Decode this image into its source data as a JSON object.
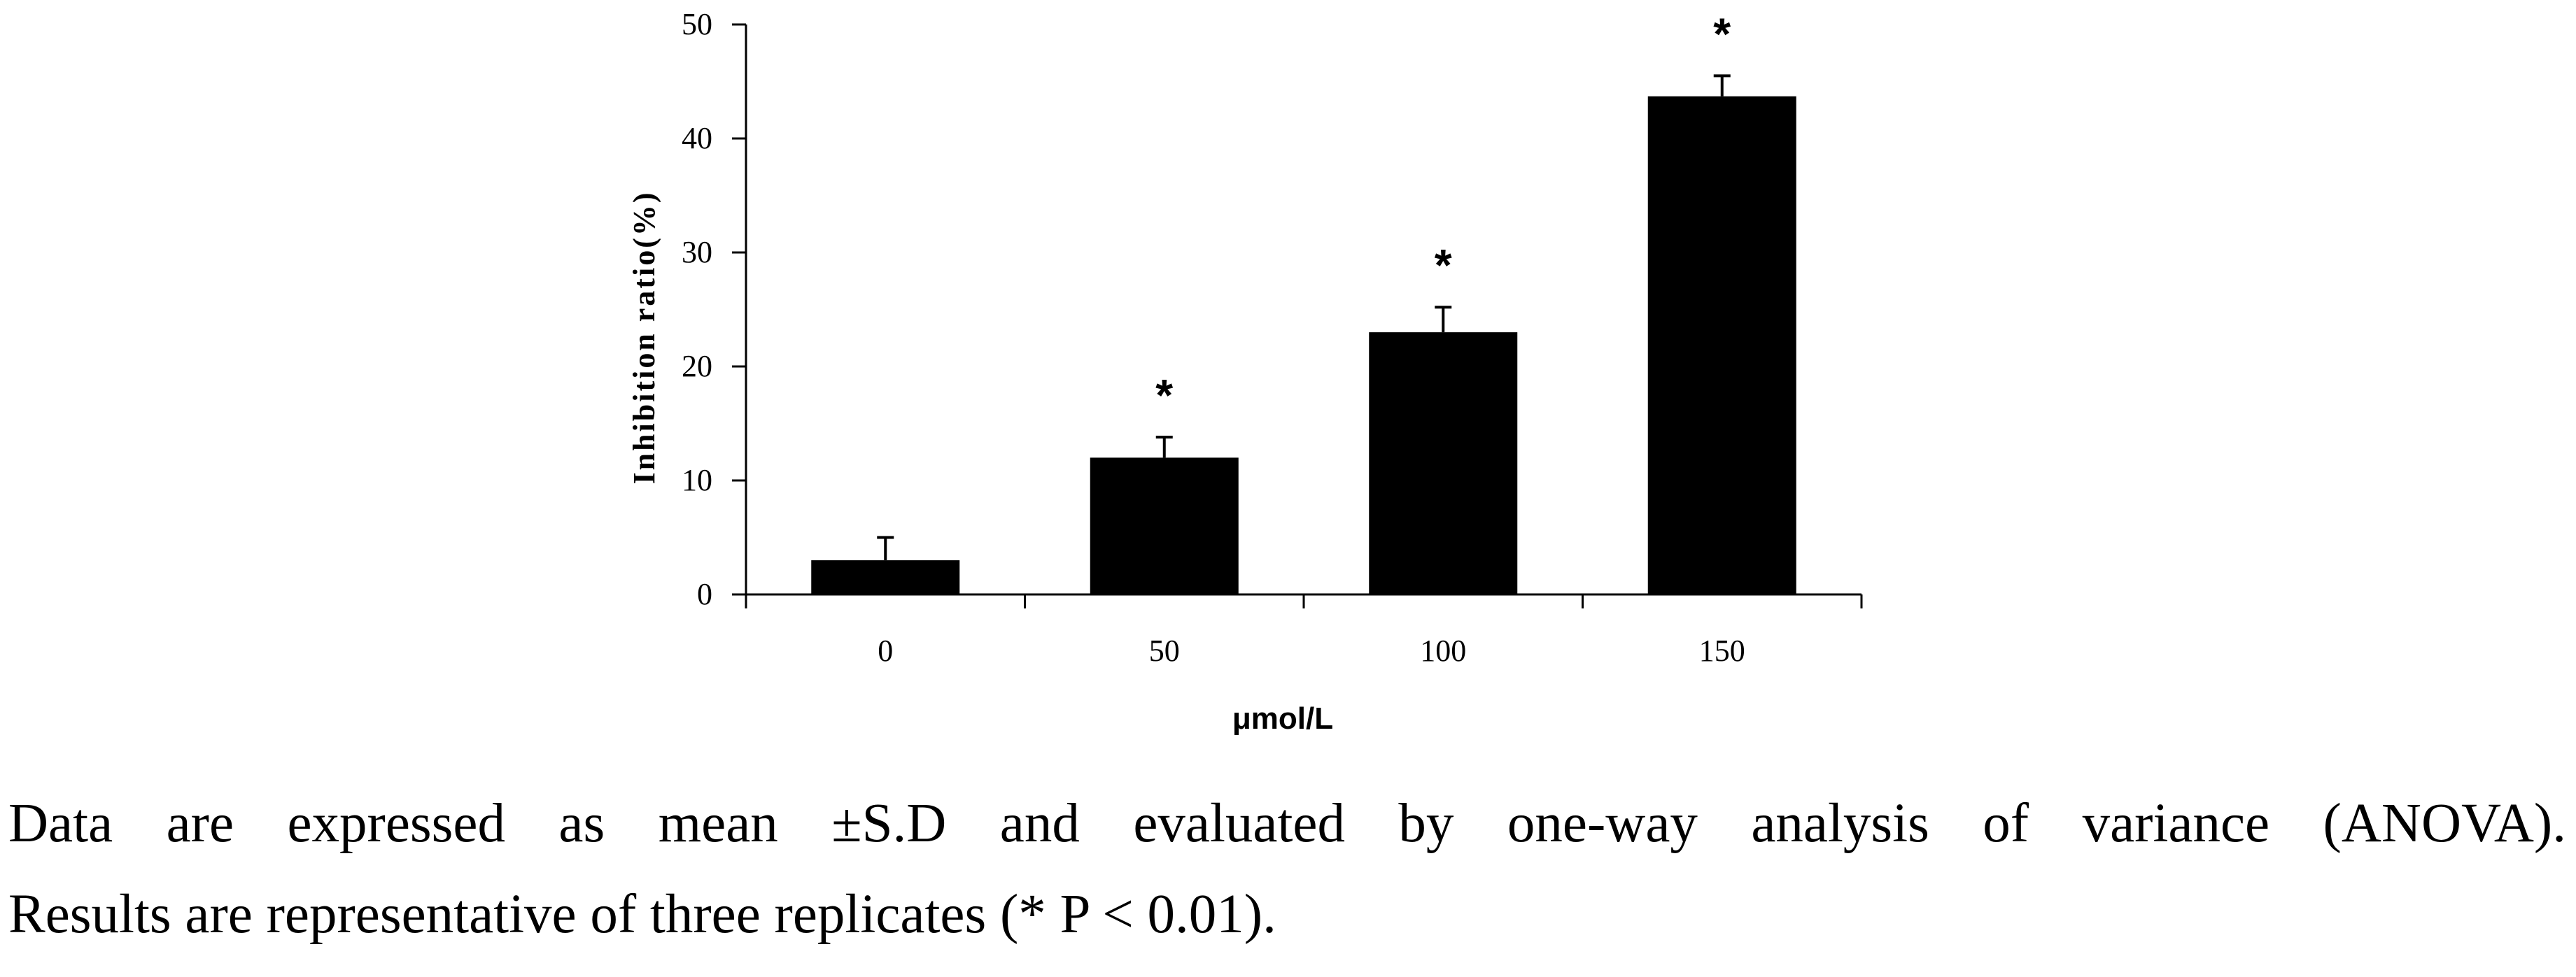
{
  "chart_data": {
    "type": "bar",
    "categories": [
      "0",
      "50",
      "100",
      "150"
    ],
    "values": [
      3,
      12,
      23,
      43.7
    ],
    "errors": [
      2,
      1.8,
      2.2,
      1.8
    ],
    "significance": [
      "",
      "*",
      "*",
      "*"
    ],
    "xlabel": "μmol/L",
    "ylabel": "Inhibition ratio(%)",
    "ylim": [
      0,
      50
    ],
    "yticks": [
      "0",
      "10",
      "20",
      "30",
      "40",
      "50"
    ],
    "bar_color": "#000000",
    "grid": false,
    "legend": "none"
  },
  "caption": {
    "line1": "Data are expressed as mean ±S.D and evaluated by one-way analysis of variance (ANOVA).",
    "line2": "Results are representative of three replicates (* P < 0.01)."
  }
}
